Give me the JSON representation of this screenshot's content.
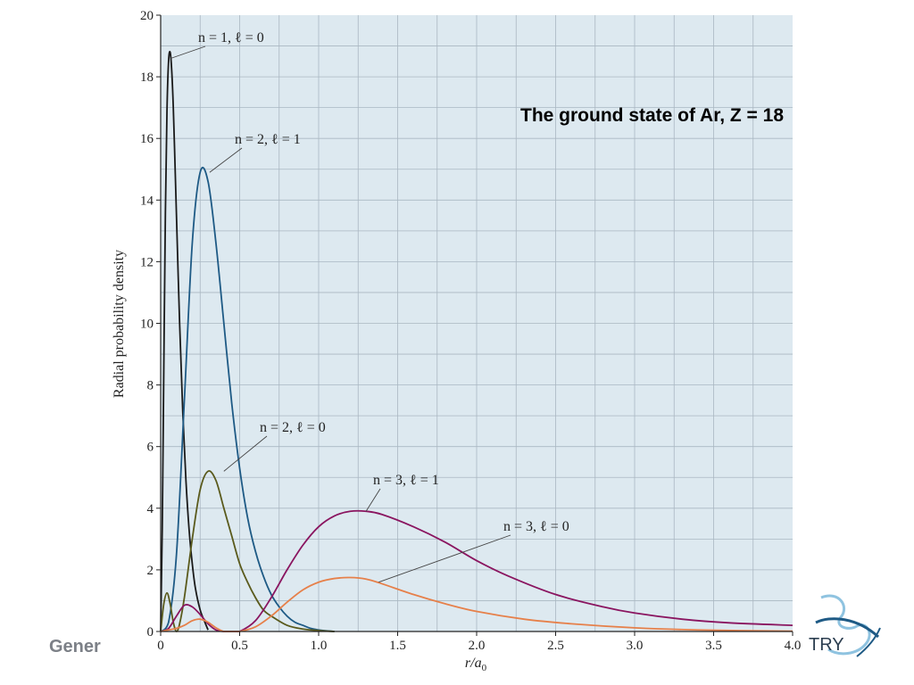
{
  "chart_data": {
    "type": "line",
    "title": "The ground state of Ar, Z = 18",
    "xlabel": "r/a",
    "xlabel_subscript": "0",
    "ylabel": "Radial probability density",
    "xlim": [
      0,
      4.0
    ],
    "ylim": [
      0,
      20
    ],
    "x_ticks": [
      "0",
      "0.5",
      "1.0",
      "1.5",
      "2.0",
      "2.5",
      "3.0",
      "3.5",
      "4.0"
    ],
    "x_tick_values": [
      0,
      0.5,
      1.0,
      1.5,
      2.0,
      2.5,
      3.0,
      3.5,
      4.0
    ],
    "y_ticks": [
      "0",
      "2",
      "4",
      "6",
      "8",
      "10",
      "12",
      "14",
      "16",
      "18",
      "20"
    ],
    "y_tick_values": [
      0,
      2,
      4,
      6,
      8,
      10,
      12,
      14,
      16,
      18,
      20
    ],
    "grid": true,
    "background": "#dde9f0",
    "series": [
      {
        "name": "n = 1, ℓ = 0",
        "color": "#1a1a1a",
        "x": [
          0,
          0.01,
          0.02,
          0.03,
          0.04,
          0.05,
          0.06,
          0.07,
          0.08,
          0.09,
          0.1,
          0.12,
          0.14,
          0.16,
          0.18,
          0.2,
          0.22,
          0.25,
          0.28,
          0.3
        ],
        "y": [
          0,
          3.3,
          8.6,
          13.6,
          16.9,
          18.5,
          18.8,
          18.2,
          17.0,
          15.3,
          13.5,
          10.0,
          7.1,
          4.9,
          3.3,
          2.2,
          1.4,
          0.7,
          0.3,
          0.05
        ]
      },
      {
        "name": "n = 2, ℓ = 1",
        "color": "#1e5a85",
        "x": [
          0,
          0.05,
          0.1,
          0.15,
          0.2,
          0.25,
          0.3,
          0.35,
          0.4,
          0.45,
          0.5,
          0.55,
          0.6,
          0.65,
          0.7,
          0.75,
          0.8,
          0.85,
          0.9,
          0.95,
          1.0,
          1.05,
          1.1
        ],
        "y": [
          0,
          0.3,
          2.5,
          7.5,
          12.6,
          14.9,
          14.6,
          12.6,
          10.0,
          7.4,
          5.3,
          3.7,
          2.6,
          1.8,
          1.2,
          0.8,
          0.5,
          0.3,
          0.2,
          0.1,
          0.05,
          0.02,
          0
        ]
      },
      {
        "name": "n = 2, ℓ = 0",
        "color": "#5a5a1c",
        "x": [
          0,
          0.02,
          0.04,
          0.06,
          0.08,
          0.1,
          0.12,
          0.15,
          0.2,
          0.25,
          0.3,
          0.35,
          0.4,
          0.45,
          0.5,
          0.55,
          0.6,
          0.65,
          0.7,
          0.8,
          0.9,
          1.0,
          1.1
        ],
        "y": [
          0,
          0.9,
          1.25,
          0.9,
          0.3,
          0.0,
          0.25,
          1.1,
          3.0,
          4.6,
          5.2,
          4.9,
          4.0,
          3.1,
          2.2,
          1.6,
          1.1,
          0.7,
          0.5,
          0.2,
          0.08,
          0.03,
          0
        ]
      },
      {
        "name": "n = 3, ℓ = 1",
        "color": "#8a1560",
        "x": [
          0,
          0.05,
          0.1,
          0.15,
          0.2,
          0.25,
          0.3,
          0.35,
          0.4,
          0.45,
          0.5,
          0.6,
          0.7,
          0.8,
          0.9,
          1.0,
          1.1,
          1.2,
          1.3,
          1.4,
          1.6,
          1.8,
          2.0,
          2.2,
          2.5,
          2.8,
          3.0,
          3.3,
          3.6,
          4.0
        ],
        "y": [
          0,
          0.1,
          0.5,
          0.85,
          0.8,
          0.55,
          0.25,
          0.05,
          0.0,
          0.0,
          0.0,
          0.35,
          1.1,
          2.0,
          2.8,
          3.4,
          3.75,
          3.9,
          3.9,
          3.8,
          3.4,
          2.9,
          2.3,
          1.8,
          1.2,
          0.8,
          0.6,
          0.4,
          0.28,
          0.2
        ]
      },
      {
        "name": "n = 3, ℓ = 0",
        "color": "#e6804a",
        "x": [
          0,
          0.05,
          0.1,
          0.15,
          0.2,
          0.25,
          0.3,
          0.35,
          0.4,
          0.45,
          0.5,
          0.6,
          0.7,
          0.8,
          0.9,
          1.0,
          1.1,
          1.2,
          1.3,
          1.4,
          1.6,
          1.8,
          2.0,
          2.3,
          2.6,
          3.0,
          3.4,
          4.0
        ],
        "y": [
          0,
          0.05,
          0.1,
          0.2,
          0.35,
          0.4,
          0.3,
          0.12,
          0.0,
          0.0,
          0.0,
          0.15,
          0.5,
          0.95,
          1.35,
          1.6,
          1.72,
          1.75,
          1.7,
          1.55,
          1.2,
          0.9,
          0.65,
          0.4,
          0.25,
          0.12,
          0.05,
          0.01
        ]
      }
    ],
    "annotations": [
      {
        "text": "n = 1, ℓ = 0",
        "series": 0,
        "x": 0.065,
        "y": 18.6
      },
      {
        "text": "n = 2, ℓ = 1",
        "series": 1,
        "x": 0.31,
        "y": 14.9
      },
      {
        "text": "n = 2, ℓ = 0",
        "series": 2,
        "x": 0.4,
        "y": 5.2
      },
      {
        "text": "n = 3, ℓ = 1",
        "series": 3,
        "x": 1.3,
        "y": 3.9
      },
      {
        "text": "n = 3, ℓ = 0",
        "series": 4,
        "x": 1.38,
        "y": 1.6
      }
    ]
  },
  "footer": {
    "text": "Gener"
  },
  "logo": {
    "text": "TRY",
    "name": "chemistry-logo"
  }
}
